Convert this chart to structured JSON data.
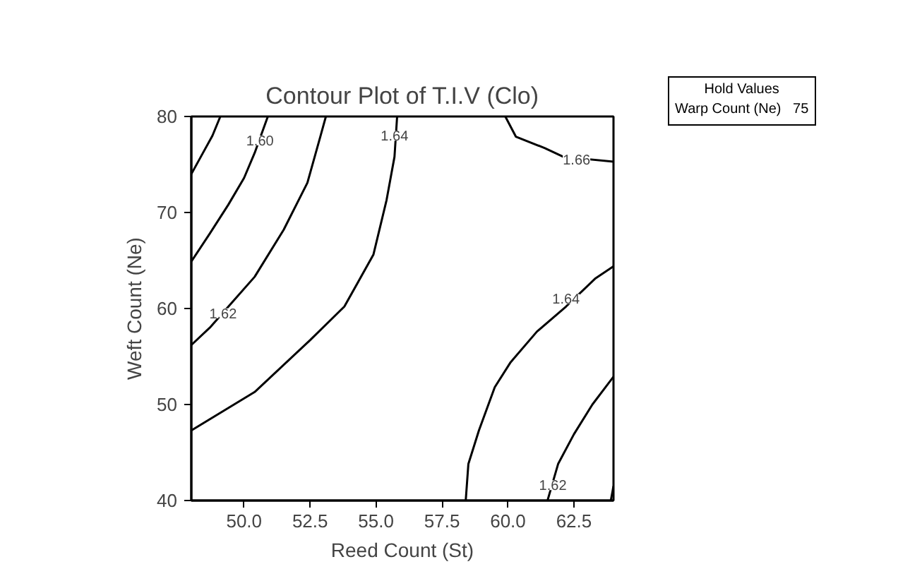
{
  "chart_data": {
    "type": "line",
    "title": "Contour Plot of T.I.V (Clo)",
    "xlabel": "Reed Count (St)",
    "ylabel": "Weft Count (Ne)",
    "xlim": [
      48,
      64
    ],
    "ylim": [
      40,
      80
    ],
    "xticks": [
      {
        "value": 50,
        "label": "50.0"
      },
      {
        "value": 52.5,
        "label": "52.5"
      },
      {
        "value": 55,
        "label": "55.0"
      },
      {
        "value": 57.5,
        "label": "57.5"
      },
      {
        "value": 60,
        "label": "60.0"
      },
      {
        "value": 62.5,
        "label": "62.5"
      }
    ],
    "yticks": [
      40,
      50,
      60,
      70,
      80
    ],
    "series": [
      {
        "color": "#000000",
        "x": [
          48,
          48.4,
          48.8,
          49.1
        ],
        "values": [
          74,
          76,
          78,
          80
        ]
      },
      {
        "color": "#000000",
        "x": [
          48,
          48.7,
          49.4,
          50.0,
          50.4,
          50.9
        ],
        "values": [
          64.9,
          67.8,
          70.8,
          73.6,
          76.2,
          80
        ]
      },
      {
        "color": "#000000",
        "x": [
          48,
          48.7,
          49.5,
          50.4,
          51.5,
          52.4,
          52.9,
          53.1
        ],
        "values": [
          56.2,
          58,
          60.5,
          63.3,
          68.2,
          73.1,
          78,
          80
        ]
      },
      {
        "color": "#000000",
        "x": [
          48,
          50.4,
          52.5,
          53.8,
          54.9,
          55.4,
          55.7,
          55.8
        ],
        "values": [
          47.3,
          51.3,
          56.7,
          60.2,
          65.6,
          71.3,
          75.8,
          80
        ]
      },
      {
        "color": "#000000",
        "x": [
          59.9,
          60.3,
          61.4,
          62.1,
          64
        ],
        "values": [
          80,
          77.9,
          76.7,
          75.8,
          75.3
        ]
      },
      {
        "color": "#000000",
        "x": [
          58.4,
          58.5,
          58.9,
          59.5,
          60.1,
          61.1,
          62.2,
          63.3,
          64
        ],
        "values": [
          40,
          43.8,
          47.3,
          51.8,
          54.4,
          57.6,
          60.2,
          63.1,
          64.4
        ]
      },
      {
        "color": "#000000",
        "x": [
          61.5,
          61.9,
          62.5,
          63.2,
          64
        ],
        "values": [
          40,
          43.8,
          46.9,
          50,
          52.9
        ]
      },
      {
        "color": "#000000",
        "x": [
          63.9,
          64
        ],
        "values": [
          40,
          41.5
        ]
      }
    ],
    "annotations": [
      {
        "text": "1.60",
        "x": 50.6,
        "y": 77.5
      },
      {
        "text": "1.62",
        "x": 49.2,
        "y": 59.5
      },
      {
        "text": "1.64",
        "x": 55.7,
        "y": 78
      },
      {
        "text": "1.66",
        "x": 62.6,
        "y": 75.5
      },
      {
        "text": "1.64",
        "x": 62.2,
        "y": 61
      },
      {
        "text": "1.62",
        "x": 61.7,
        "y": 41.6
      },
      "Hold Values\nWarp Count (Ne)   75"
    ]
  }
}
